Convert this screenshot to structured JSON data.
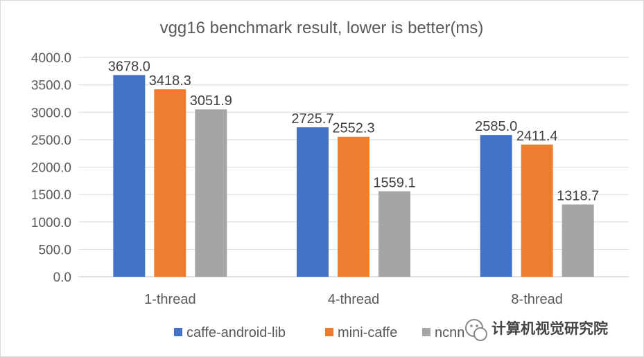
{
  "chart_data": {
    "type": "bar",
    "title": "vgg16 benchmark result, lower is better(ms)",
    "xlabel": "",
    "ylabel": "",
    "categories": [
      "1-thread",
      "4-thread",
      "8-thread"
    ],
    "series": [
      {
        "name": "caffe-android-lib",
        "color": "#4472c4",
        "values": [
          3678.0,
          2725.7,
          2585.0
        ]
      },
      {
        "name": "mini-caffe",
        "color": "#ed7d31",
        "values": [
          3418.3,
          2552.3,
          2411.4
        ]
      },
      {
        "name": "ncnn",
        "color": "#a5a5a5",
        "values": [
          3051.9,
          1559.1,
          1318.7
        ]
      }
    ],
    "ylim": [
      0,
      4000
    ],
    "yticks": [
      "0.0",
      "500.0",
      "1000.0",
      "1500.0",
      "2000.0",
      "2500.0",
      "3000.0",
      "3500.0",
      "4000.0"
    ],
    "grid": true,
    "legend": "bottom"
  },
  "watermark": {
    "text": "计算机视觉研究院",
    "icon": "wechat-icon"
  }
}
